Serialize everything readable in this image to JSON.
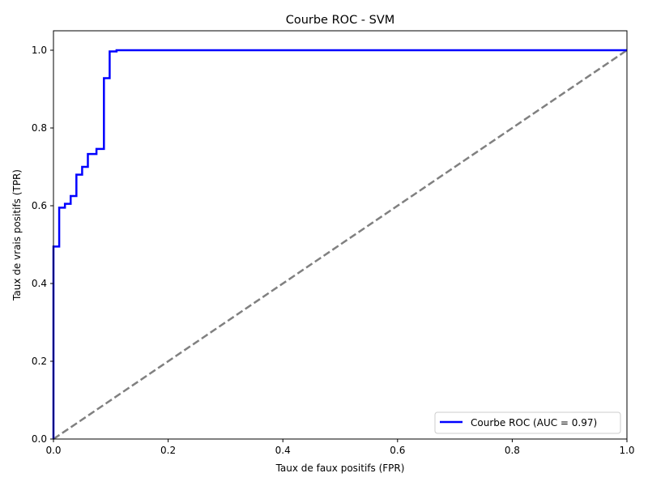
{
  "chart_data": {
    "type": "line",
    "title": "Courbe ROC - SVM",
    "xlabel": "Taux de faux positifs (FPR)",
    "ylabel": "Taux de vrais positifs (TPR)",
    "xlim": [
      0.0,
      1.0
    ],
    "ylim": [
      0.0,
      1.05
    ],
    "xticks": [
      "0.0",
      "0.2",
      "0.4",
      "0.6",
      "0.8",
      "1.0"
    ],
    "yticks": [
      "0.0",
      "0.2",
      "0.4",
      "0.6",
      "0.8",
      "1.0"
    ],
    "grid": false,
    "legend_position": "lower-right",
    "series": [
      {
        "name": "Courbe ROC (AUC = 0.97)",
        "color": "#0000ff",
        "style": "solid",
        "step": true,
        "points": [
          [
            0.0,
            0.0
          ],
          [
            0.0,
            0.495
          ],
          [
            0.01,
            0.495
          ],
          [
            0.01,
            0.595
          ],
          [
            0.02,
            0.595
          ],
          [
            0.02,
            0.605
          ],
          [
            0.03,
            0.605
          ],
          [
            0.03,
            0.625
          ],
          [
            0.04,
            0.625
          ],
          [
            0.04,
            0.68
          ],
          [
            0.05,
            0.68
          ],
          [
            0.05,
            0.7
          ],
          [
            0.06,
            0.7
          ],
          [
            0.06,
            0.733
          ],
          [
            0.075,
            0.733
          ],
          [
            0.075,
            0.746
          ],
          [
            0.088,
            0.746
          ],
          [
            0.088,
            0.928
          ],
          [
            0.098,
            0.928
          ],
          [
            0.098,
            0.997
          ],
          [
            0.11,
            0.997
          ],
          [
            0.11,
            1.0
          ],
          [
            1.0,
            1.0
          ]
        ]
      },
      {
        "name": "",
        "color": "#808080",
        "style": "dashed",
        "step": false,
        "points": [
          [
            0.0,
            0.0
          ],
          [
            1.0,
            1.0
          ]
        ]
      }
    ]
  }
}
